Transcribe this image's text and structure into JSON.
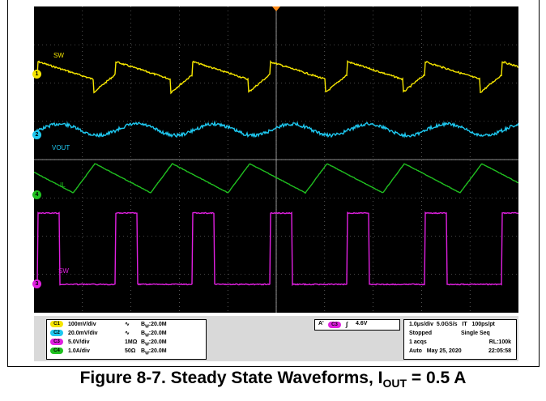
{
  "channels": [
    {
      "id": "1",
      "badge": "C1",
      "trace_label": "SW",
      "color": "#f5e500",
      "scale": "100mV/div",
      "coupling": "∿",
      "impedance": "",
      "bw": "20.0M"
    },
    {
      "id": "2",
      "badge": "C2",
      "trace_label": "VOUT",
      "color": "#1ec8f0",
      "scale": "20.0mV/div",
      "coupling": "∿",
      "impedance": "",
      "bw": "20.0M"
    },
    {
      "id": "3",
      "badge": "C3",
      "trace_label": "SW",
      "color": "#e020e0",
      "scale": "5.0V/div",
      "coupling": "",
      "impedance": "1MΩ",
      "bw": "20.0M"
    },
    {
      "id": "4",
      "badge": "C4",
      "trace_label": "IL",
      "color": "#20c020",
      "scale": "1.0A/div",
      "coupling": "",
      "impedance": "50Ω",
      "bw": "20.0M"
    }
  ],
  "trace_labels": {
    "ch1": "SW",
    "ch2": "VOUT",
    "ch4": "IL",
    "ch3": "SW"
  },
  "channel_markers": {
    "ch1": "1",
    "ch2": "2",
    "ch4": "4",
    "ch3": "3"
  },
  "trigger": {
    "mode": "A'",
    "source": "C3",
    "slope": "∫",
    "level": "4.6V"
  },
  "timebase": {
    "time_div": "1.0μs/div",
    "sample_rate": "5.0GS/s",
    "mode": "IT",
    "resolution": "100ps/pt",
    "state": "Stopped",
    "seq": "Single Seq",
    "acqs": "1 acqs",
    "record_length": "RL:100k",
    "trigger_mode": "Auto",
    "date": "May 25, 2020",
    "time": "22:05:58"
  },
  "bw_prefix": "B",
  "bw_sub": "W",
  "caption": {
    "main": "Figure 8-7. Steady State Waveforms, I",
    "sub": "OUT",
    "tail": " = 0.5 A"
  },
  "colors": {
    "screen_bg": "#000000",
    "grid": "#8a8a8a",
    "trigger_marker": "#ff8c1a"
  }
}
